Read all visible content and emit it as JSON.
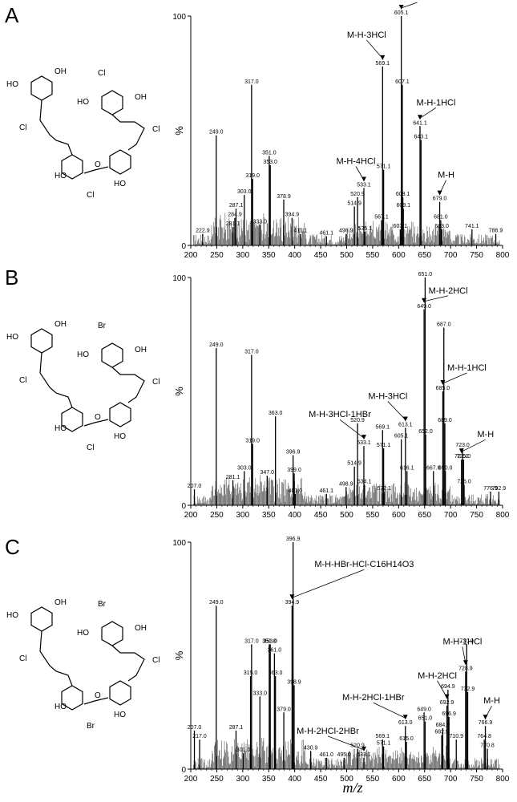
{
  "xaxis_title": "m/z",
  "chart_data": [
    {
      "type": "bar",
      "panel": "A",
      "xlim": [
        200,
        800
      ],
      "ylim": [
        0,
        100
      ],
      "xticks": [
        "200",
        "250",
        "300",
        "350",
        "400",
        "450",
        "500",
        "550",
        "600",
        "650",
        "700",
        "750",
        "800"
      ],
      "yticks": [
        "0",
        "100"
      ],
      "ylabel": "%",
      "peaks": [
        {
          "mz": 222.9,
          "label": "222.9",
          "intensity": 5
        },
        {
          "mz": 249.0,
          "label": "249.0",
          "intensity": 48
        },
        {
          "mz": 281.1,
          "label": "281.1",
          "intensity": 8
        },
        {
          "mz": 284.9,
          "label": "284.9",
          "intensity": 12
        },
        {
          "mz": 287.1,
          "label": "287.1",
          "intensity": 16
        },
        {
          "mz": 303.0,
          "label": "303.0",
          "intensity": 22
        },
        {
          "mz": 317.0,
          "label": "317.0",
          "intensity": 70
        },
        {
          "mz": 319.0,
          "label": "319.0",
          "intensity": 29
        },
        {
          "mz": 333.0,
          "label": "333.0",
          "intensity": 9
        },
        {
          "mz": 351.0,
          "label": "351.0",
          "intensity": 39
        },
        {
          "mz": 353.0,
          "label": "353.0",
          "intensity": 35
        },
        {
          "mz": 378.9,
          "label": "378.9",
          "intensity": 20
        },
        {
          "mz": 394.9,
          "label": "394.9",
          "intensity": 12
        },
        {
          "mz": 411.1,
          "label": "411.1",
          "intensity": 5
        },
        {
          "mz": 461.1,
          "label": "461.1",
          "intensity": 4
        },
        {
          "mz": 498.9,
          "label": "498.9",
          "intensity": 5
        },
        {
          "mz": 514.9,
          "label": "514.9",
          "intensity": 17
        },
        {
          "mz": 520.9,
          "label": "520.9",
          "intensity": 21
        },
        {
          "mz": 533.1,
          "label": "533.1",
          "intensity": 25
        },
        {
          "mz": 535.1,
          "label": "535.1",
          "intensity": 6
        },
        {
          "mz": 567.1,
          "label": "567.1",
          "intensity": 11
        },
        {
          "mz": 569.1,
          "label": "569.1",
          "intensity": 78
        },
        {
          "mz": 571.1,
          "label": "571.1",
          "intensity": 33
        },
        {
          "mz": 603.1,
          "label": "603.1",
          "intensity": 7
        },
        {
          "mz": 605.1,
          "label": "605.1",
          "intensity": 100
        },
        {
          "mz": 607.1,
          "label": "607.1",
          "intensity": 70
        },
        {
          "mz": 608.1,
          "label": "608.1",
          "intensity": 21
        },
        {
          "mz": 609.1,
          "label": "609.1",
          "intensity": 16
        },
        {
          "mz": 641.1,
          "label": "641.1",
          "intensity": 52
        },
        {
          "mz": 643.1,
          "label": "643.1",
          "intensity": 46
        },
        {
          "mz": 679.0,
          "label": "679.0",
          "intensity": 19
        },
        {
          "mz": 681.0,
          "label": "681.0",
          "intensity": 11
        },
        {
          "mz": 683.0,
          "label": "683.0",
          "intensity": 7
        },
        {
          "mz": 741.1,
          "label": "741.1",
          "intensity": 7
        },
        {
          "mz": 786.9,
          "label": "786.9",
          "intensity": 5
        }
      ],
      "annotations": [
        {
          "text": "M-H-2HCl",
          "target_mz": 605.1
        },
        {
          "text": "M-H-3HCl",
          "target_mz": 569.1
        },
        {
          "text": "M-H-1HCl",
          "target_mz": 641.1
        },
        {
          "text": "M-H-4HCl",
          "target_mz": 533.1
        },
        {
          "text": "M-H",
          "target_mz": 679.0
        }
      ],
      "structure_atoms": {
        "oh1": "OH",
        "oh2": "HO",
        "oh3": "OH",
        "oh4": "HO",
        "oh5": "HO",
        "oh6": "HO",
        "cl1": "Cl",
        "cl2": "Cl",
        "cl3": "Cl",
        "cl4": "Cl",
        "o": "O"
      }
    },
    {
      "type": "bar",
      "panel": "B",
      "xlim": [
        200,
        800
      ],
      "ylim": [
        0,
        100
      ],
      "xticks": [
        "200",
        "250",
        "300",
        "350",
        "400",
        "450",
        "500",
        "550",
        "600",
        "650",
        "700",
        "750",
        "800"
      ],
      "yticks": [
        "0",
        "100"
      ],
      "ylabel": "%",
      "peaks": [
        {
          "mz": 207.0,
          "label": "207.0",
          "intensity": 7
        },
        {
          "mz": 249.0,
          "label": "249.0",
          "intensity": 69
        },
        {
          "mz": 281.1,
          "label": "281.1",
          "intensity": 11
        },
        {
          "mz": 303.0,
          "label": "303.0",
          "intensity": 15
        },
        {
          "mz": 317.0,
          "label": "317.0",
          "intensity": 66
        },
        {
          "mz": 319.0,
          "label": "319.0",
          "intensity": 27
        },
        {
          "mz": 347.0,
          "label": "347.0",
          "intensity": 13
        },
        {
          "mz": 363.0,
          "label": "363.0",
          "intensity": 39
        },
        {
          "mz": 396.9,
          "label": "396.9",
          "intensity": 22
        },
        {
          "mz": 399.0,
          "label": "399.0",
          "intensity": 14
        },
        {
          "mz": 401.0,
          "label": "401.0",
          "intensity": 5
        },
        {
          "mz": 461.1,
          "label": "461.1",
          "intensity": 5
        },
        {
          "mz": 498.9,
          "label": "498.9",
          "intensity": 8
        },
        {
          "mz": 514.9,
          "label": "514.9",
          "intensity": 17
        },
        {
          "mz": 520.9,
          "label": "520.9",
          "intensity": 36
        },
        {
          "mz": 533.1,
          "label": "533.1",
          "intensity": 26
        },
        {
          "mz": 534.1,
          "label": "534.1",
          "intensity": 9
        },
        {
          "mz": 569.1,
          "label": "569.1",
          "intensity": 33
        },
        {
          "mz": 571.1,
          "label": "571.1",
          "intensity": 25
        },
        {
          "mz": 572.1,
          "label": "572.1",
          "intensity": 6
        },
        {
          "mz": 605.1,
          "label": "605.1",
          "intensity": 29
        },
        {
          "mz": 613.1,
          "label": "613.1",
          "intensity": 34
        },
        {
          "mz": 616.1,
          "label": "616.1",
          "intensity": 15
        },
        {
          "mz": 649.0,
          "label": "649.0",
          "intensity": 86
        },
        {
          "mz": 651.0,
          "label": "651.0",
          "intensity": 100
        },
        {
          "mz": 652.0,
          "label": "652.0",
          "intensity": 31
        },
        {
          "mz": 667.0,
          "label": "667.0",
          "intensity": 15
        },
        {
          "mz": 685.0,
          "label": "685.0",
          "intensity": 50
        },
        {
          "mz": 687.0,
          "label": "687.0",
          "intensity": 78
        },
        {
          "mz": 689.0,
          "label": "689.0",
          "intensity": 36
        },
        {
          "mz": 690.0,
          "label": "690.0",
          "intensity": 15
        },
        {
          "mz": 721.0,
          "label": "721.0",
          "intensity": 20
        },
        {
          "mz": 723.0,
          "label": "723.0",
          "intensity": 25
        },
        {
          "mz": 725.0,
          "label": "725.0",
          "intensity": 20
        },
        {
          "mz": 726.0,
          "label": "726.0",
          "intensity": 9
        },
        {
          "mz": 776.9,
          "label": "776.9",
          "intensity": 6
        },
        {
          "mz": 792.9,
          "label": "792.9",
          "intensity": 6
        }
      ],
      "annotations": [
        {
          "text": "M-H-2HCl",
          "target_mz": 649.0
        },
        {
          "text": "M-H-1HCl",
          "target_mz": 685.0
        },
        {
          "text": "M-H-3HCl",
          "target_mz": 613.1
        },
        {
          "text": "M-H-3HCl-1HBr",
          "target_mz": 533.1
        },
        {
          "text": "M-H",
          "target_mz": 721.0
        }
      ],
      "structure_atoms": {
        "oh1": "OH",
        "oh2": "HO",
        "oh3": "OH",
        "oh4": "HO",
        "oh5": "HO",
        "oh6": "HO",
        "br1": "Br",
        "cl2": "Cl",
        "cl3": "Cl",
        "cl4": "Cl",
        "o": "O"
      }
    },
    {
      "type": "bar",
      "panel": "C",
      "xlim": [
        200,
        800
      ],
      "ylim": [
        0,
        100
      ],
      "xticks": [
        "200",
        "250",
        "300",
        "350",
        "400",
        "450",
        "500",
        "550",
        "600",
        "650",
        "700",
        "750",
        "800"
      ],
      "yticks": [
        "0",
        "100"
      ],
      "ylabel": "%",
      "peaks": [
        {
          "mz": 207.0,
          "label": "207.0",
          "intensity": 17
        },
        {
          "mz": 217.0,
          "label": "217.0",
          "intensity": 13
        },
        {
          "mz": 249.0,
          "label": "249.0",
          "intensity": 72
        },
        {
          "mz": 287.1,
          "label": "287.1",
          "intensity": 17
        },
        {
          "mz": 301.0,
          "label": "301.0",
          "intensity": 7
        },
        {
          "mz": 315.0,
          "label": "315.0",
          "intensity": 41
        },
        {
          "mz": 317.0,
          "label": "317.0",
          "intensity": 55
        },
        {
          "mz": 333.0,
          "label": "333.0",
          "intensity": 32
        },
        {
          "mz": 351.0,
          "label": "351.0",
          "intensity": 55
        },
        {
          "mz": 353.0,
          "label": "353.0",
          "intensity": 55
        },
        {
          "mz": 361.0,
          "label": "361.0",
          "intensity": 51
        },
        {
          "mz": 363.0,
          "label": "363.0",
          "intensity": 41
        },
        {
          "mz": 379.0,
          "label": "379.0",
          "intensity": 25
        },
        {
          "mz": 394.9,
          "label": "394.9",
          "intensity": 72
        },
        {
          "mz": 396.9,
          "label": "396.9",
          "intensity": 100
        },
        {
          "mz": 398.9,
          "label": "398.9",
          "intensity": 37
        },
        {
          "mz": 430.9,
          "label": "430.9",
          "intensity": 8
        },
        {
          "mz": 461.0,
          "label": "461.0",
          "intensity": 5
        },
        {
          "mz": 495.0,
          "label": "495.0",
          "intensity": 5
        },
        {
          "mz": 520.9,
          "label": "520.9",
          "intensity": 9
        },
        {
          "mz": 533.1,
          "label": "533.1",
          "intensity": 5
        },
        {
          "mz": 569.1,
          "label": "569.1",
          "intensity": 13
        },
        {
          "mz": 571.1,
          "label": "571.1",
          "intensity": 10
        },
        {
          "mz": 613.0,
          "label": "613.0",
          "intensity": 19
        },
        {
          "mz": 615.0,
          "label": "615.0",
          "intensity": 12
        },
        {
          "mz": 649.0,
          "label": "649.0",
          "intensity": 25
        },
        {
          "mz": 651.0,
          "label": "651.0",
          "intensity": 21
        },
        {
          "mz": 682.9,
          "label": "682.9",
          "intensity": 15
        },
        {
          "mz": 684.9,
          "label": "684.9",
          "intensity": 18
        },
        {
          "mz": 692.9,
          "label": "692.9",
          "intensity": 28
        },
        {
          "mz": 694.9,
          "label": "694.9",
          "intensity": 35
        },
        {
          "mz": 696.9,
          "label": "696.9",
          "intensity": 23
        },
        {
          "mz": 710.9,
          "label": "710.9",
          "intensity": 13
        },
        {
          "mz": 728.9,
          "label": "728.9",
          "intensity": 43
        },
        {
          "mz": 730.9,
          "label": "730.9",
          "intensity": 55
        },
        {
          "mz": 732.9,
          "label": "732.9",
          "intensity": 34
        },
        {
          "mz": 764.8,
          "label": "764.8",
          "intensity": 13
        },
        {
          "mz": 766.9,
          "label": "766.9",
          "intensity": 19
        },
        {
          "mz": 770.8,
          "label": "770.8",
          "intensity": 9
        }
      ],
      "annotations": [
        {
          "text": "M-H-HBr-HCl-C16H14O3",
          "target_mz": 394.9
        },
        {
          "text": "M-H-1HCl",
          "target_mz": 728.9
        },
        {
          "text": "M-H-2HCl",
          "target_mz": 692.9
        },
        {
          "text": "M-H-2HCl-1HBr",
          "target_mz": 613.0
        },
        {
          "text": "M-H-2HCl-2HBr",
          "target_mz": 533.1
        },
        {
          "text": "M-H",
          "target_mz": 766.9
        }
      ],
      "structure_atoms": {
        "oh1": "OH",
        "oh2": "HO",
        "oh3": "OH",
        "oh4": "HO",
        "oh5": "HO",
        "oh6": "HO",
        "br1": "Br",
        "cl2": "Cl",
        "cl3": "Cl",
        "br4": "Br",
        "o": "O"
      }
    }
  ]
}
